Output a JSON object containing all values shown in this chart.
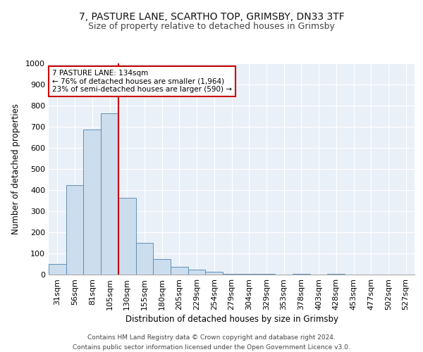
{
  "title1": "7, PASTURE LANE, SCARTHO TOP, GRIMSBY, DN33 3TF",
  "title2": "Size of property relative to detached houses in Grimsby",
  "xlabel": "Distribution of detached houses by size in Grimsby",
  "ylabel": "Number of detached properties",
  "categories": [
    "31sqm",
    "56sqm",
    "81sqm",
    "105sqm",
    "130sqm",
    "155sqm",
    "180sqm",
    "205sqm",
    "229sqm",
    "254sqm",
    "279sqm",
    "304sqm",
    "329sqm",
    "353sqm",
    "378sqm",
    "403sqm",
    "428sqm",
    "453sqm",
    "477sqm",
    "502sqm",
    "527sqm"
  ],
  "values": [
    50,
    422,
    688,
    762,
    362,
    150,
    75,
    37,
    25,
    15,
    5,
    3,
    2,
    0,
    3,
    0,
    3,
    0,
    0,
    0,
    0
  ],
  "bar_color": "#ccdded",
  "bar_edge_color": "#6090b8",
  "vline_color": "#cc0000",
  "annotation_text": "7 PASTURE LANE: 134sqm\n← 76% of detached houses are smaller (1,964)\n23% of semi-detached houses are larger (590) →",
  "annotation_box_color": "#ffffff",
  "annotation_box_edge": "#cc0000",
  "ylim": [
    0,
    1000
  ],
  "yticks": [
    0,
    100,
    200,
    300,
    400,
    500,
    600,
    700,
    800,
    900,
    1000
  ],
  "bg_color": "#eaf0f8",
  "grid_color": "#ffffff",
  "footer": "Contains HM Land Registry data © Crown copyright and database right 2024.\nContains public sector information licensed under the Open Government Licence v3.0.",
  "title1_fontsize": 10,
  "title2_fontsize": 9,
  "xlabel_fontsize": 8.5,
  "ylabel_fontsize": 8.5,
  "tick_fontsize": 8,
  "annot_fontsize": 7.5,
  "footer_fontsize": 6.5
}
